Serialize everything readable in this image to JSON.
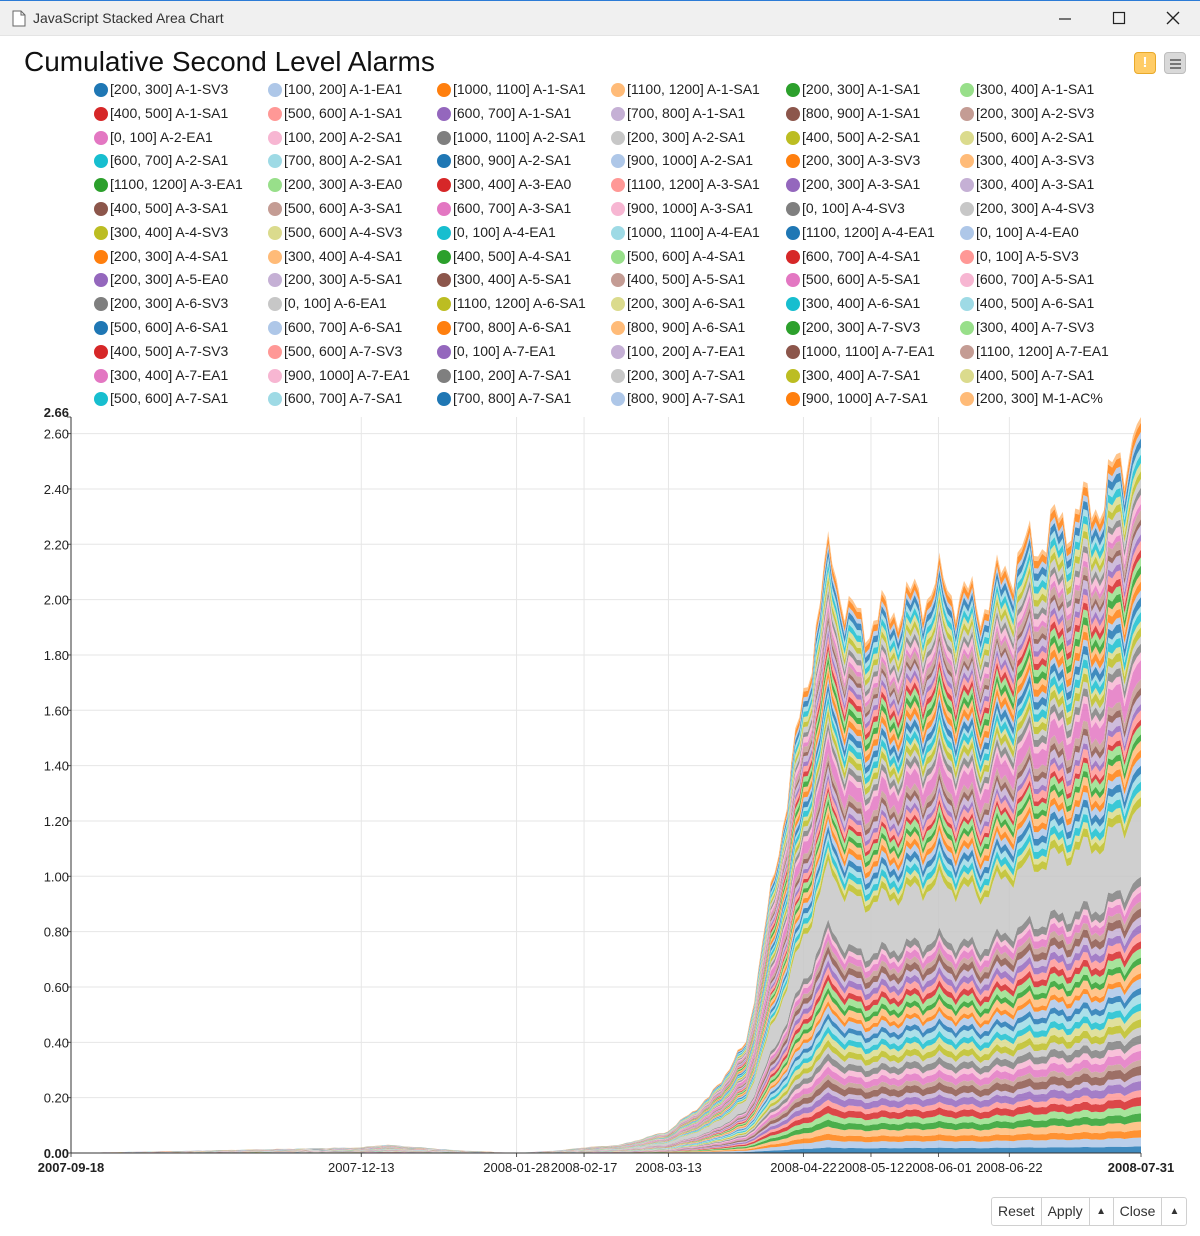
{
  "window": {
    "title": "JavaScript Stacked Area Chart"
  },
  "toolbar": {
    "warning_icon": "warning-icon",
    "menu_icon": "menu-icon"
  },
  "footer": {
    "reset": "Reset",
    "apply": "Apply",
    "close": "Close"
  },
  "chart_data": {
    "type": "area",
    "stacked": true,
    "title": "Cumulative Second Level Alarms",
    "xlabel": "",
    "ylabel": "",
    "ylim": [
      0,
      2.66
    ],
    "y_ticks": [
      "0.00",
      "0.20",
      "0.40",
      "0.60",
      "0.80",
      "1.00",
      "1.20",
      "1.40",
      "1.60",
      "1.80",
      "2.00",
      "2.20",
      "2.40",
      "2.60",
      "2.66"
    ],
    "x_ticks": [
      "2007-09-18",
      "2007-12-13",
      "2008-01-28",
      "2008-02-17",
      "2008-03-13",
      "2008-04-22",
      "2008-05-12",
      "2008-06-01",
      "2008-06-22",
      "2008-07-31"
    ],
    "legend": [
      {
        "name": "[200, 300] A-1-SV3",
        "color": "#1f77b4"
      },
      {
        "name": "[100, 200] A-1-EA1",
        "color": "#aec7e8"
      },
      {
        "name": "[1000, 1100] A-1-SA1",
        "color": "#ff7f0e"
      },
      {
        "name": "[1100, 1200] A-1-SA1",
        "color": "#ffbb78"
      },
      {
        "name": "[200, 300] A-1-SA1",
        "color": "#2ca02c"
      },
      {
        "name": "[300, 400] A-1-SA1",
        "color": "#98df8a"
      },
      {
        "name": "[400, 500] A-1-SA1",
        "color": "#d62728"
      },
      {
        "name": "[500, 600] A-1-SA1",
        "color": "#ff9896"
      },
      {
        "name": "[600, 700] A-1-SA1",
        "color": "#9467bd"
      },
      {
        "name": "[700, 800] A-1-SA1",
        "color": "#c5b0d5"
      },
      {
        "name": "[800, 900] A-1-SA1",
        "color": "#8c564b"
      },
      {
        "name": "[200, 300] A-2-SV3",
        "color": "#c49c94"
      },
      {
        "name": "[0, 100] A-2-EA1",
        "color": "#e377c2"
      },
      {
        "name": "[100, 200] A-2-SA1",
        "color": "#f7b6d2"
      },
      {
        "name": "[1000, 1100] A-2-SA1",
        "color": "#7f7f7f"
      },
      {
        "name": "[200, 300] A-2-SA1",
        "color": "#c7c7c7"
      },
      {
        "name": "[400, 500] A-2-SA1",
        "color": "#bcbd22"
      },
      {
        "name": "[500, 600] A-2-SA1",
        "color": "#dbdb8d"
      },
      {
        "name": "[600, 700] A-2-SA1",
        "color": "#17becf"
      },
      {
        "name": "[700, 800] A-2-SA1",
        "color": "#9edae5"
      },
      {
        "name": "[800, 900] A-2-SA1",
        "color": "#1f77b4"
      },
      {
        "name": "[900, 1000] A-2-SA1",
        "color": "#aec7e8"
      },
      {
        "name": "[200, 300] A-3-SV3",
        "color": "#ff7f0e"
      },
      {
        "name": "[300, 400] A-3-SV3",
        "color": "#ffbb78"
      },
      {
        "name": "[1100, 1200] A-3-EA1",
        "color": "#2ca02c"
      },
      {
        "name": "[200, 300] A-3-EA0",
        "color": "#98df8a"
      },
      {
        "name": "[300, 400] A-3-EA0",
        "color": "#d62728"
      },
      {
        "name": "[1100, 1200] A-3-SA1",
        "color": "#ff9896"
      },
      {
        "name": "[200, 300] A-3-SA1",
        "color": "#9467bd"
      },
      {
        "name": "[300, 400] A-3-SA1",
        "color": "#c5b0d5"
      },
      {
        "name": "[400, 500] A-3-SA1",
        "color": "#8c564b"
      },
      {
        "name": "[500, 600] A-3-SA1",
        "color": "#c49c94"
      },
      {
        "name": "[600, 700] A-3-SA1",
        "color": "#e377c2"
      },
      {
        "name": "[900, 1000] A-3-SA1",
        "color": "#f7b6d2"
      },
      {
        "name": "[0, 100] A-4-SV3",
        "color": "#7f7f7f"
      },
      {
        "name": "[200, 300] A-4-SV3",
        "color": "#c7c7c7"
      },
      {
        "name": "[300, 400] A-4-SV3",
        "color": "#bcbd22"
      },
      {
        "name": "[500, 600] A-4-SV3",
        "color": "#dbdb8d"
      },
      {
        "name": "[0, 100] A-4-EA1",
        "color": "#17becf"
      },
      {
        "name": "[1000, 1100] A-4-EA1",
        "color": "#9edae5"
      },
      {
        "name": "[1100, 1200] A-4-EA1",
        "color": "#1f77b4"
      },
      {
        "name": "[0, 100] A-4-EA0",
        "color": "#aec7e8"
      },
      {
        "name": "[200, 300] A-4-SA1",
        "color": "#ff7f0e"
      },
      {
        "name": "[300, 400] A-4-SA1",
        "color": "#ffbb78"
      },
      {
        "name": "[400, 500] A-4-SA1",
        "color": "#2ca02c"
      },
      {
        "name": "[500, 600] A-4-SA1",
        "color": "#98df8a"
      },
      {
        "name": "[600, 700] A-4-SA1",
        "color": "#d62728"
      },
      {
        "name": "[0, 100] A-5-SV3",
        "color": "#ff9896"
      },
      {
        "name": "[200, 300] A-5-EA0",
        "color": "#9467bd"
      },
      {
        "name": "[200, 300] A-5-SA1",
        "color": "#c5b0d5"
      },
      {
        "name": "[300, 400] A-5-SA1",
        "color": "#8c564b"
      },
      {
        "name": "[400, 500] A-5-SA1",
        "color": "#c49c94"
      },
      {
        "name": "[500, 600] A-5-SA1",
        "color": "#e377c2"
      },
      {
        "name": "[600, 700] A-5-SA1",
        "color": "#f7b6d2"
      },
      {
        "name": "[200, 300] A-6-SV3",
        "color": "#7f7f7f"
      },
      {
        "name": "[0, 100] A-6-EA1",
        "color": "#c7c7c7"
      },
      {
        "name": "[1100, 1200] A-6-SA1",
        "color": "#bcbd22"
      },
      {
        "name": "[200, 300] A-6-SA1",
        "color": "#dbdb8d"
      },
      {
        "name": "[300, 400] A-6-SA1",
        "color": "#17becf"
      },
      {
        "name": "[400, 500] A-6-SA1",
        "color": "#9edae5"
      },
      {
        "name": "[500, 600] A-6-SA1",
        "color": "#1f77b4"
      },
      {
        "name": "[600, 700] A-6-SA1",
        "color": "#aec7e8"
      },
      {
        "name": "[700, 800] A-6-SA1",
        "color": "#ff7f0e"
      },
      {
        "name": "[800, 900] A-6-SA1",
        "color": "#ffbb78"
      },
      {
        "name": "[200, 300] A-7-SV3",
        "color": "#2ca02c"
      },
      {
        "name": "[300, 400] A-7-SV3",
        "color": "#98df8a"
      },
      {
        "name": "[400, 500] A-7-SV3",
        "color": "#d62728"
      },
      {
        "name": "[500, 600] A-7-SV3",
        "color": "#ff9896"
      },
      {
        "name": "[0, 100] A-7-EA1",
        "color": "#9467bd"
      },
      {
        "name": "[100, 200] A-7-EA1",
        "color": "#c5b0d5"
      },
      {
        "name": "[1000, 1100] A-7-EA1",
        "color": "#8c564b"
      },
      {
        "name": "[1100, 1200] A-7-EA1",
        "color": "#c49c94"
      },
      {
        "name": "[300, 400] A-7-EA1",
        "color": "#e377c2"
      },
      {
        "name": "[900, 1000] A-7-EA1",
        "color": "#f7b6d2"
      },
      {
        "name": "[100, 200] A-7-SA1",
        "color": "#7f7f7f"
      },
      {
        "name": "[200, 300] A-7-SA1",
        "color": "#c7c7c7"
      },
      {
        "name": "[300, 400] A-7-SA1",
        "color": "#bcbd22"
      },
      {
        "name": "[400, 500] A-7-SA1",
        "color": "#dbdb8d"
      },
      {
        "name": "[500, 600] A-7-SA1",
        "color": "#17becf"
      },
      {
        "name": "[600, 700] A-7-SA1",
        "color": "#9edae5"
      },
      {
        "name": "[700, 800] A-7-SA1",
        "color": "#1f77b4"
      },
      {
        "name": "[800, 900] A-7-SA1",
        "color": "#aec7e8"
      },
      {
        "name": "[900, 1000] A-7-SA1",
        "color": "#ff7f0e"
      },
      {
        "name": "[200, 300] M-1-AC%",
        "color": "#ffbb78"
      }
    ],
    "total_series": {
      "x": [
        "2007-09-18",
        "2007-12-13",
        "2007-12-20",
        "2008-01-10",
        "2008-01-28",
        "2008-02-10",
        "2008-02-17",
        "2008-02-28",
        "2008-03-13",
        "2008-03-25",
        "2008-04-05",
        "2008-04-22",
        "2008-04-30",
        "2008-05-05",
        "2008-05-12",
        "2008-05-20",
        "2008-06-01",
        "2008-06-08",
        "2008-06-14",
        "2008-06-22",
        "2008-07-05",
        "2008-07-20",
        "2008-07-31"
      ],
      "y": [
        0.0,
        0.02,
        0.03,
        0.01,
        0.0,
        0.01,
        0.02,
        0.03,
        0.08,
        0.2,
        0.4,
        1.65,
        2.2,
        1.95,
        1.92,
        1.98,
        2.06,
        2.02,
        1.98,
        2.13,
        2.26,
        2.38,
        2.66
      ]
    }
  }
}
